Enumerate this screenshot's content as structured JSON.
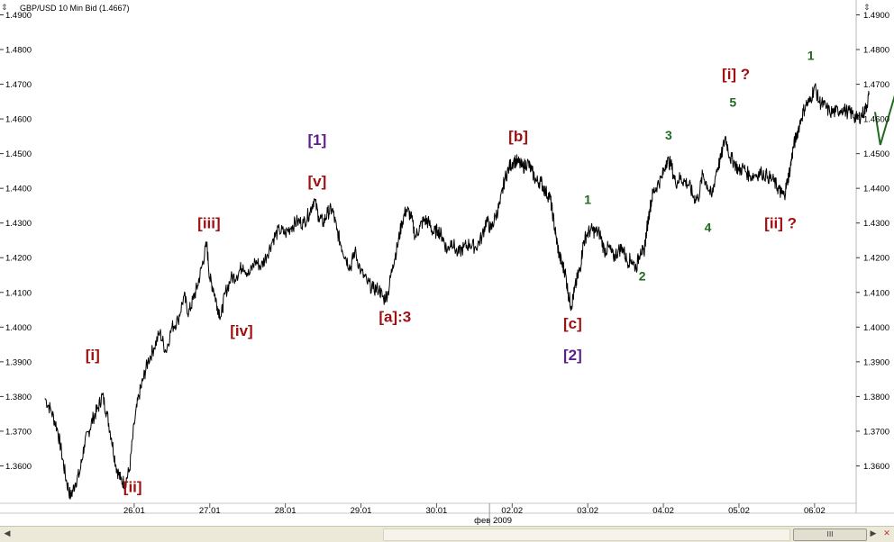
{
  "chart_data": {
    "type": "line",
    "title": "GBP/USD 10 Min Bid (1.4667)",
    "y_ticks": [
      "1.3600",
      "1.3700",
      "1.3800",
      "1.3900",
      "1.4000",
      "1.4100",
      "1.4200",
      "1.4300",
      "1.4400",
      "1.4500",
      "1.4600",
      "1.4700",
      "1.4800",
      "1.4900"
    ],
    "ylim": [
      1.35,
      1.4935
    ],
    "x_ticks": [
      "26.01",
      "27.01",
      "28.01",
      "29.01",
      "30.01",
      "02.02",
      "03.02",
      "04.02",
      "05.02",
      "06.02"
    ],
    "x_sublabel": "фев 2009",
    "xlim": [
      -0.25,
      10.55
    ],
    "grid": false,
    "series": [
      {
        "values": [
          [
            -0.18,
            1.3795
          ],
          [
            -0.1,
            1.376
          ],
          [
            -0.02,
            1.371
          ],
          [
            0.04,
            1.364
          ],
          [
            0.1,
            1.356
          ],
          [
            0.16,
            1.351
          ],
          [
            0.22,
            1.355
          ],
          [
            0.28,
            1.358
          ],
          [
            0.34,
            1.366
          ],
          [
            0.4,
            1.37
          ],
          [
            0.46,
            1.374
          ],
          [
            0.52,
            1.3765
          ],
          [
            0.58,
            1.3805
          ],
          [
            0.64,
            1.375
          ],
          [
            0.7,
            1.368
          ],
          [
            0.76,
            1.36
          ],
          [
            0.82,
            1.356
          ],
          [
            0.88,
            1.355
          ],
          [
            0.94,
            1.359
          ],
          [
            1.0,
            1.372
          ],
          [
            1.06,
            1.38
          ],
          [
            1.12,
            1.385
          ],
          [
            1.18,
            1.39
          ],
          [
            1.26,
            1.394
          ],
          [
            1.34,
            1.3985
          ],
          [
            1.42,
            1.393
          ],
          [
            1.5,
            1.4
          ],
          [
            1.58,
            1.402
          ],
          [
            1.66,
            1.409
          ],
          [
            1.72,
            1.404
          ],
          [
            1.78,
            1.408
          ],
          [
            1.84,
            1.412
          ],
          [
            1.9,
            1.418
          ],
          [
            1.96,
            1.424
          ],
          [
            2.0,
            1.414
          ],
          [
            2.05,
            1.411
          ],
          [
            2.1,
            1.406
          ],
          [
            2.15,
            1.403
          ],
          [
            2.2,
            1.4095
          ],
          [
            2.28,
            1.414
          ],
          [
            2.36,
            1.415
          ],
          [
            2.44,
            1.418
          ],
          [
            2.52,
            1.415
          ],
          [
            2.6,
            1.419
          ],
          [
            2.68,
            1.4175
          ],
          [
            2.76,
            1.421
          ],
          [
            2.84,
            1.4255
          ],
          [
            2.92,
            1.428
          ],
          [
            3.0,
            1.427
          ],
          [
            3.08,
            1.429
          ],
          [
            3.16,
            1.4305
          ],
          [
            3.24,
            1.43
          ],
          [
            3.32,
            1.433
          ],
          [
            3.38,
            1.437
          ],
          [
            3.44,
            1.432
          ],
          [
            3.5,
            1.43
          ],
          [
            3.56,
            1.433
          ],
          [
            3.62,
            1.434
          ],
          [
            3.68,
            1.428
          ],
          [
            3.74,
            1.4235
          ],
          [
            3.8,
            1.42
          ],
          [
            3.86,
            1.417
          ],
          [
            3.92,
            1.422
          ],
          [
            4.0,
            1.416
          ],
          [
            4.08,
            1.413
          ],
          [
            4.16,
            1.411
          ],
          [
            4.24,
            1.411
          ],
          [
            4.3,
            1.408
          ],
          [
            4.36,
            1.41
          ],
          [
            4.42,
            1.418
          ],
          [
            4.48,
            1.423
          ],
          [
            4.54,
            1.43
          ],
          [
            4.6,
            1.434
          ],
          [
            4.66,
            1.432
          ],
          [
            4.72,
            1.426
          ],
          [
            4.78,
            1.429
          ],
          [
            4.84,
            1.431
          ],
          [
            4.9,
            1.43
          ],
          [
            4.96,
            1.427
          ],
          [
            5.02,
            1.428
          ],
          [
            5.08,
            1.426
          ],
          [
            5.14,
            1.422
          ],
          [
            5.2,
            1.425
          ],
          [
            5.28,
            1.421
          ],
          [
            5.36,
            1.423
          ],
          [
            5.44,
            1.424
          ],
          [
            5.52,
            1.423
          ],
          [
            5.6,
            1.426
          ],
          [
            5.66,
            1.431
          ],
          [
            5.72,
            1.428
          ],
          [
            5.78,
            1.432
          ],
          [
            5.84,
            1.4355
          ],
          [
            5.9,
            1.4425
          ],
          [
            5.96,
            1.446
          ],
          [
            6.02,
            1.448
          ],
          [
            6.08,
            1.4475
          ],
          [
            6.14,
            1.446
          ],
          [
            6.2,
            1.4475
          ],
          [
            6.26,
            1.445
          ],
          [
            6.32,
            1.442
          ],
          [
            6.38,
            1.442
          ],
          [
            6.44,
            1.439
          ],
          [
            6.5,
            1.4375
          ],
          [
            6.54,
            1.432
          ],
          [
            6.58,
            1.426
          ],
          [
            6.62,
            1.421
          ],
          [
            6.66,
            1.418
          ],
          [
            6.7,
            1.416
          ],
          [
            6.74,
            1.41
          ],
          [
            6.78,
            1.406
          ],
          [
            6.82,
            1.41
          ],
          [
            6.86,
            1.414
          ],
          [
            6.9,
            1.417
          ],
          [
            6.94,
            1.424
          ],
          [
            6.98,
            1.4265
          ],
          [
            7.04,
            1.428
          ],
          [
            7.1,
            1.4275
          ],
          [
            7.16,
            1.427
          ],
          [
            7.22,
            1.422
          ],
          [
            7.28,
            1.423
          ],
          [
            7.34,
            1.42
          ],
          [
            7.4,
            1.422
          ],
          [
            7.46,
            1.423
          ],
          [
            7.52,
            1.419
          ],
          [
            7.58,
            1.4195
          ],
          [
            7.64,
            1.417
          ],
          [
            7.7,
            1.4225
          ],
          [
            7.74,
            1.421
          ],
          [
            7.78,
            1.428
          ],
          [
            7.82,
            1.434
          ],
          [
            7.86,
            1.4385
          ],
          [
            7.92,
            1.441
          ],
          [
            7.98,
            1.443
          ],
          [
            8.04,
            1.448
          ],
          [
            8.1,
            1.447
          ],
          [
            8.16,
            1.4415
          ],
          [
            8.22,
            1.443
          ],
          [
            8.28,
            1.442
          ],
          [
            8.34,
            1.441
          ],
          [
            8.4,
            1.4375
          ],
          [
            8.46,
            1.437
          ],
          [
            8.52,
            1.444
          ],
          [
            8.58,
            1.441
          ],
          [
            8.64,
            1.4375
          ],
          [
            8.7,
            1.445
          ],
          [
            8.76,
            1.4485
          ],
          [
            8.82,
            1.455
          ],
          [
            8.88,
            1.449
          ],
          [
            8.94,
            1.4475
          ],
          [
            9.0,
            1.445
          ],
          [
            9.06,
            1.446
          ],
          [
            9.14,
            1.4435
          ],
          [
            9.22,
            1.444
          ],
          [
            9.3,
            1.4445
          ],
          [
            9.38,
            1.4435
          ],
          [
            9.46,
            1.442
          ],
          [
            9.52,
            1.44
          ],
          [
            9.56,
            1.4385
          ],
          [
            9.6,
            1.438
          ],
          [
            9.64,
            1.442
          ],
          [
            9.68,
            1.446
          ],
          [
            9.72,
            1.452
          ],
          [
            9.76,
            1.455
          ],
          [
            9.82,
            1.46
          ],
          [
            9.88,
            1.464
          ],
          [
            9.94,
            1.465
          ],
          [
            10.0,
            1.4695
          ],
          [
            10.06,
            1.465
          ],
          [
            10.12,
            1.464
          ],
          [
            10.2,
            1.462
          ],
          [
            10.28,
            1.462
          ],
          [
            10.36,
            1.463
          ],
          [
            10.44,
            1.462
          ],
          [
            10.5,
            1.4615
          ],
          [
            10.56,
            1.46
          ],
          [
            10.62,
            1.461
          ],
          [
            10.68,
            1.463
          ],
          [
            10.72,
            1.467
          ]
        ]
      }
    ],
    "annotations": [
      {
        "text": "[i]",
        "x": 0.45,
        "y": 1.3905,
        "color": "#a01010",
        "size": 17
      },
      {
        "text": "[ii]",
        "x": 0.98,
        "y": 1.3525,
        "color": "#a01010",
        "size": 17
      },
      {
        "text": "[iii]",
        "x": 1.99,
        "y": 1.4285,
        "color": "#a01010",
        "size": 17
      },
      {
        "text": "[iv]",
        "x": 2.42,
        "y": 1.3975,
        "color": "#a01010",
        "size": 17
      },
      {
        "text": "[v]",
        "x": 3.42,
        "y": 1.4405,
        "color": "#a01010",
        "size": 17
      },
      {
        "text": "[1]",
        "x": 3.42,
        "y": 1.4525,
        "color": "#5b1f8c",
        "size": 17
      },
      {
        "text": "[a]:3",
        "x": 4.45,
        "y": 1.4015,
        "color": "#a01010",
        "size": 17
      },
      {
        "text": "[b]",
        "x": 6.08,
        "y": 1.4535,
        "color": "#a01010",
        "size": 17
      },
      {
        "text": "[c]",
        "x": 6.8,
        "y": 1.3995,
        "color": "#a01010",
        "size": 17
      },
      {
        "text": "[2]",
        "x": 6.8,
        "y": 1.3905,
        "color": "#5b1f8c",
        "size": 17
      },
      {
        "text": "1",
        "x": 7.0,
        "y": 1.4355,
        "color": "#1e6b1e",
        "size": 14
      },
      {
        "text": "2",
        "x": 7.72,
        "y": 1.4135,
        "color": "#1e6b1e",
        "size": 14
      },
      {
        "text": "3",
        "x": 8.07,
        "y": 1.454,
        "color": "#1e6b1e",
        "size": 14
      },
      {
        "text": "4",
        "x": 8.59,
        "y": 1.4275,
        "color": "#1e6b1e",
        "size": 14
      },
      {
        "text": "5",
        "x": 8.92,
        "y": 1.4635,
        "color": "#1e6b1e",
        "size": 14
      },
      {
        "text": "[i] ?",
        "x": 8.96,
        "y": 1.4715,
        "color": "#a01010",
        "size": 17
      },
      {
        "text": "[ii] ?",
        "x": 9.55,
        "y": 1.4285,
        "color": "#a01010",
        "size": 17
      },
      {
        "text": "1",
        "x": 9.95,
        "y": 1.477,
        "color": "#1e6b1e",
        "size": 14
      }
    ],
    "projection_arrow": {
      "color": "#1e6b1e",
      "points": [
        [
          10.8,
          1.462
        ],
        [
          10.87,
          1.4525
        ],
        [
          11.4,
          1.492
        ]
      ]
    }
  },
  "ui": {
    "scroll_thumb_label": "III",
    "accent_label": "#a01010",
    "accent_wave": "#5b1f8c",
    "accent_minor": "#1e6b1e"
  }
}
